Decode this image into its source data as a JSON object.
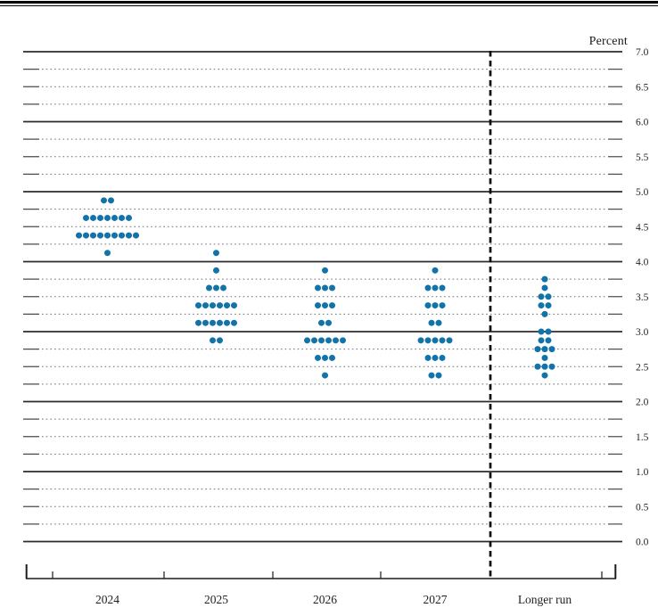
{
  "axis": {
    "percent_label": "Percent",
    "y_tick_labels": [
      "7.0",
      "6.5",
      "6.0",
      "5.5",
      "5.0",
      "4.5",
      "4.0",
      "3.5",
      "3.0",
      "2.5",
      "2.0",
      "1.5",
      "1.0",
      "0.5",
      "0.0"
    ],
    "x_labels": [
      "2024",
      "2025",
      "2026",
      "2027",
      "Longer run"
    ]
  },
  "chart_data": {
    "type": "scatter",
    "subtype": "fomc-dot-plot",
    "title": "",
    "ylabel": "Percent",
    "xlabel": "",
    "ylim": [
      0.0,
      7.0
    ],
    "y_label_step": 0.5,
    "gridline_step": 0.25,
    "grid": true,
    "legend_position": "none",
    "dot_color": "#1273a8",
    "separator_before_category": "Longer run",
    "categories": [
      "2024",
      "2025",
      "2026",
      "2027",
      "Longer run"
    ],
    "series": [
      {
        "name": "2024",
        "dots": [
          {
            "value": 4.875,
            "count": 2
          },
          {
            "value": 4.625,
            "count": 7
          },
          {
            "value": 4.375,
            "count": 9
          },
          {
            "value": 4.125,
            "count": 1
          }
        ]
      },
      {
        "name": "2025",
        "dots": [
          {
            "value": 4.125,
            "count": 1
          },
          {
            "value": 3.875,
            "count": 1
          },
          {
            "value": 3.625,
            "count": 3
          },
          {
            "value": 3.375,
            "count": 6
          },
          {
            "value": 3.125,
            "count": 6
          },
          {
            "value": 2.875,
            "count": 2
          }
        ]
      },
      {
        "name": "2026",
        "dots": [
          {
            "value": 3.875,
            "count": 1
          },
          {
            "value": 3.625,
            "count": 3
          },
          {
            "value": 3.375,
            "count": 3
          },
          {
            "value": 3.125,
            "count": 2
          },
          {
            "value": 2.875,
            "count": 6
          },
          {
            "value": 2.625,
            "count": 3
          },
          {
            "value": 2.375,
            "count": 1
          }
        ]
      },
      {
        "name": "2027",
        "dots": [
          {
            "value": 3.875,
            "count": 1
          },
          {
            "value": 3.625,
            "count": 3
          },
          {
            "value": 3.375,
            "count": 3
          },
          {
            "value": 3.125,
            "count": 2
          },
          {
            "value": 2.875,
            "count": 5
          },
          {
            "value": 2.625,
            "count": 3
          },
          {
            "value": 2.375,
            "count": 2
          }
        ]
      },
      {
        "name": "Longer run",
        "dots": [
          {
            "value": 3.75,
            "count": 1
          },
          {
            "value": 3.625,
            "count": 1
          },
          {
            "value": 3.5,
            "count": 2
          },
          {
            "value": 3.375,
            "count": 2
          },
          {
            "value": 3.25,
            "count": 1
          },
          {
            "value": 3.0,
            "count": 2
          },
          {
            "value": 2.875,
            "count": 2
          },
          {
            "value": 2.75,
            "count": 3
          },
          {
            "value": 2.625,
            "count": 1
          },
          {
            "value": 2.5,
            "count": 3
          },
          {
            "value": 2.375,
            "count": 1
          }
        ]
      }
    ]
  }
}
